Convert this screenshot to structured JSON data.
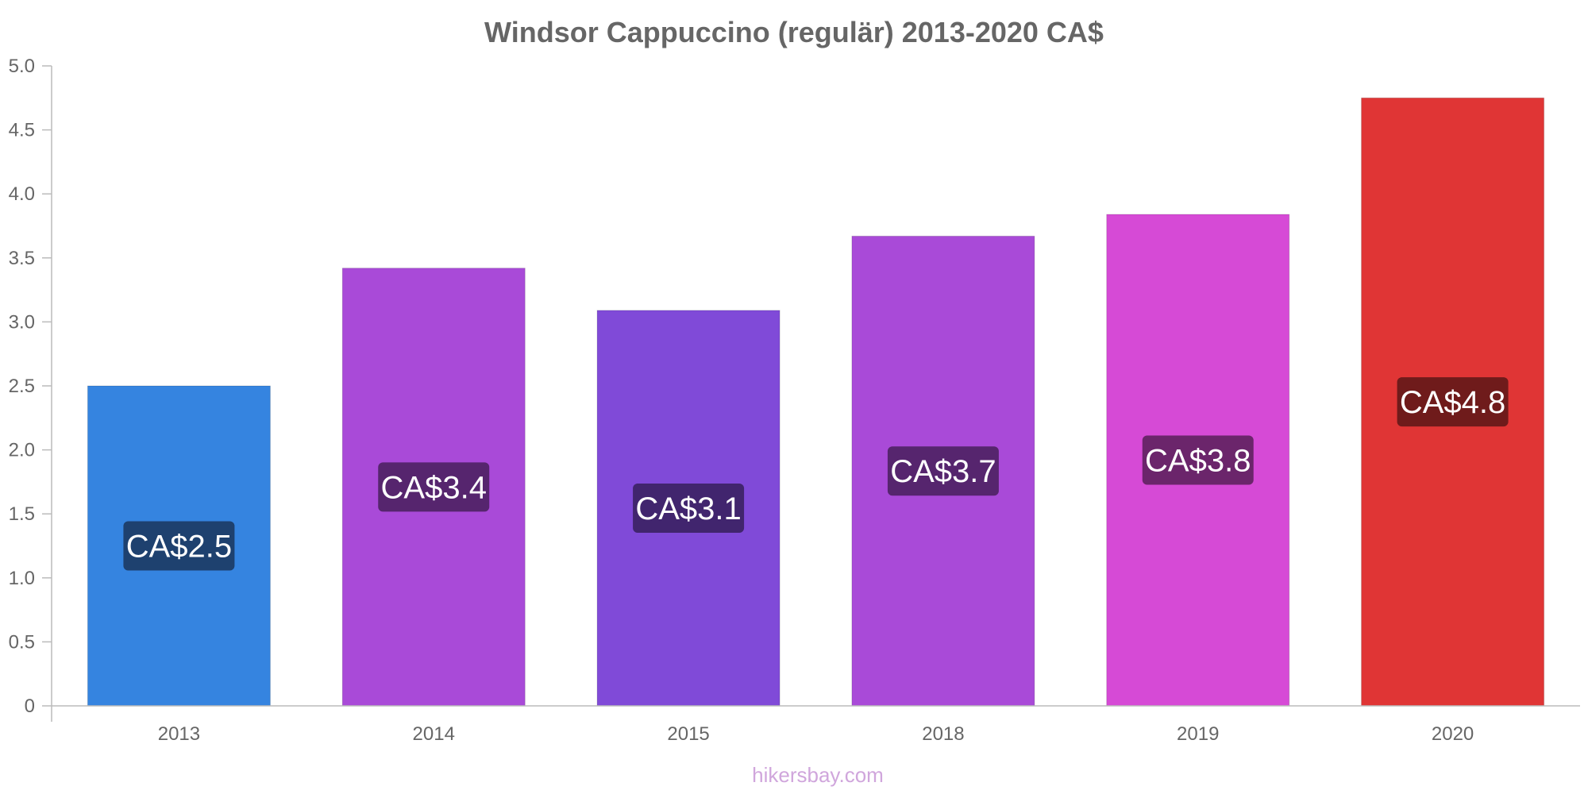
{
  "chart_data": {
    "type": "bar",
    "title": "Windsor Cappuccino (regulär) 2013-2020 CA$",
    "xlabel": "",
    "ylabel": "",
    "categories": [
      "2013",
      "2014",
      "2015",
      "2018",
      "2019",
      "2020"
    ],
    "values": [
      2.5,
      3.42,
      3.09,
      3.67,
      3.84,
      4.75
    ],
    "data_labels": [
      "CA$2.5",
      "CA$3.4",
      "CA$3.1",
      "CA$3.7",
      "CA$3.8",
      "CA$4.8"
    ],
    "bar_colors": [
      "#3584e0",
      "#a94ad8",
      "#804ad8",
      "#a94ad8",
      "#d64ad6",
      "#e03535"
    ],
    "label_bg_colors": [
      "#1e416f",
      "#56256e",
      "#41256e",
      "#56256e",
      "#6b256b",
      "#6f1b1b"
    ],
    "yticks": [
      "0",
      "0.5",
      "1.0",
      "1.5",
      "2.0",
      "2.5",
      "3.0",
      "3.5",
      "4.0",
      "4.5",
      "5.0"
    ],
    "ytick_values": [
      0,
      0.5,
      1,
      1.5,
      2,
      2.5,
      3,
      3.5,
      4,
      4.5,
      5
    ],
    "ylim": [
      0,
      5
    ],
    "grid": false,
    "legend": "none"
  },
  "watermark": "hikersbay.com"
}
